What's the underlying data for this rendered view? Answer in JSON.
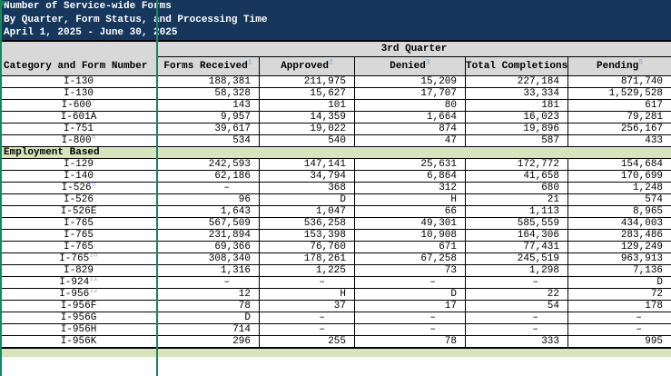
{
  "title": {
    "line1": "Number of Service-wide Forms",
    "line2": "By Quarter, Form Status, and Processing Time",
    "line3": "April 1, 2025 - June 30, 2025"
  },
  "table": {
    "quarter_header": "3rd Quarter",
    "category_header": "Category and Form Number",
    "columns": [
      {
        "label": "Forms Received",
        "sup": "1"
      },
      {
        "label": "Approved",
        "sup": "2"
      },
      {
        "label": "Denied",
        "sup": "3"
      },
      {
        "label": "Total Completions",
        "sup": "4"
      },
      {
        "label": "Pending",
        "sup": "5"
      }
    ],
    "sections": [
      {
        "label": "",
        "rows": [
          {
            "form": "I-130",
            "sup": "",
            "values": [
              "188,381",
              "211,975",
              "15,209",
              "227,184",
              "871,740"
            ]
          },
          {
            "form": "I-130",
            "sup": "",
            "values": [
              "58,328",
              "15,627",
              "17,707",
              "33,334",
              "1,529,528"
            ]
          },
          {
            "form": "I-600",
            "sup": "7",
            "values": [
              "143",
              "101",
              "80",
              "181",
              "617"
            ]
          },
          {
            "form": "I-601A",
            "sup": "",
            "values": [
              "9,957",
              "14,359",
              "1,664",
              "16,023",
              "79,281"
            ]
          },
          {
            "form": "I-751",
            "sup": "",
            "values": [
              "39,617",
              "19,022",
              "874",
              "19,896",
              "256,167"
            ]
          },
          {
            "form": "I-800",
            "sup": "8",
            "values": [
              "534",
              "540",
              "47",
              "587",
              "433"
            ]
          }
        ]
      },
      {
        "label": "Employment Based",
        "rows": [
          {
            "form": "I-129",
            "sup": "",
            "values": [
              "242,593",
              "147,141",
              "25,631",
              "172,772",
              "154,684"
            ]
          },
          {
            "form": "I-140",
            "sup": "",
            "values": [
              "62,186",
              "34,794",
              "6,864",
              "41,658",
              "170,699"
            ]
          },
          {
            "form": "I-526",
            "sup": "9",
            "values": [
              "–",
              "368",
              "312",
              "680",
              "1,248"
            ]
          },
          {
            "form": "I-526",
            "sup": "",
            "values": [
              "96",
              "D",
              "H",
              "21",
              "574"
            ]
          },
          {
            "form": "I-526E",
            "sup": "",
            "values": [
              "1,643",
              "1,047",
              "66",
              "1,113",
              "8,965"
            ]
          },
          {
            "form": "I-765",
            "sup": "",
            "values": [
              "567,509",
              "536,258",
              "49,301",
              "585,559",
              "434,003"
            ]
          },
          {
            "form": "I-765",
            "sup": "",
            "values": [
              "231,894",
              "153,398",
              "10,908",
              "164,306",
              "283,486"
            ]
          },
          {
            "form": "I-765",
            "sup": "",
            "values": [
              "69,366",
              "76,760",
              "671",
              "77,431",
              "129,249"
            ]
          },
          {
            "form": "I-765",
            "sup": "10",
            "values": [
              "308,340",
              "178,261",
              "67,258",
              "245,519",
              "963,913"
            ]
          },
          {
            "form": "I-829",
            "sup": "",
            "values": [
              "1,316",
              "1,225",
              "73",
              "1,298",
              "7,136"
            ]
          },
          {
            "form": "I-924",
            "sup": "11",
            "values": [
              "–",
              "–",
              "–",
              "–",
              "D"
            ]
          },
          {
            "form": "I-956",
            "sup": "12",
            "values": [
              "12",
              "H",
              "D",
              "22",
              "72"
            ]
          },
          {
            "form": "I-956F",
            "sup": "",
            "values": [
              "78",
              "37",
              "17",
              "54",
              "178"
            ]
          },
          {
            "form": "I-956G",
            "sup": "",
            "values": [
              "D",
              "–",
              "–",
              "–",
              "–"
            ]
          },
          {
            "form": "I-956H",
            "sup": "",
            "values": [
              "714",
              "–",
              "–",
              "–",
              "–"
            ]
          },
          {
            "form": "I-956K",
            "sup": "",
            "values": [
              "296",
              "255",
              "78",
              "333",
              "995"
            ]
          }
        ]
      }
    ]
  },
  "colors": {
    "title_bg": "#16375B",
    "header_bg": "#D8D8D8",
    "section_bg": "#D7E4BC",
    "selection_green": "#1E8262",
    "superscript_blue": "#95B3D7"
  }
}
